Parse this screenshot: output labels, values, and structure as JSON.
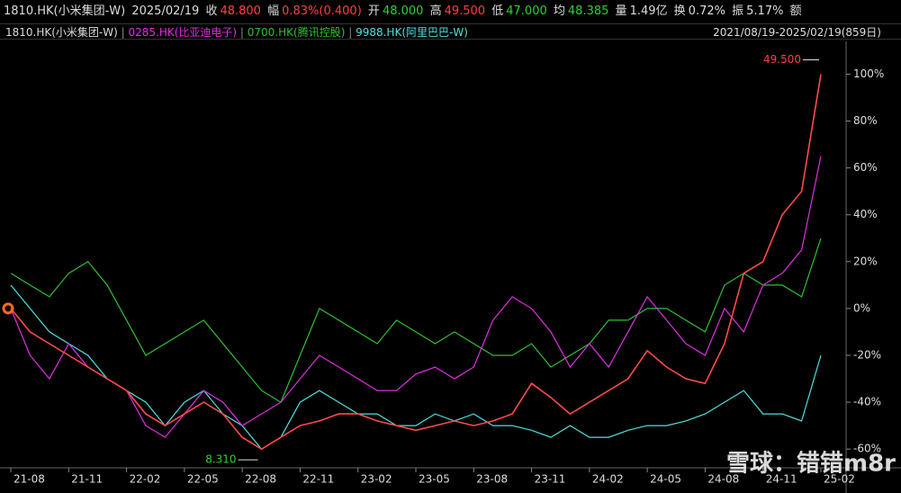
{
  "chart_data": {
    "type": "line",
    "info": [
      "1810.HK(小米集团-W)",
      "2025/02/19",
      "收",
      "48.800",
      "幅",
      "0.83%(0.400)",
      "开",
      "48.000",
      "高",
      "49.500",
      "低",
      "47.000",
      "均",
      "48.385",
      "量",
      "1.49亿",
      "换",
      "0.72%",
      "振",
      "5.17%",
      "额"
    ],
    "range": "2021/08/19-2025/02/19(859日)",
    "high_label": "49.500",
    "low_label": "8.310",
    "watermark": "雪球：错错m8r",
    "x": [
      "21-08",
      null,
      null,
      "21-11",
      null,
      null,
      "22-02",
      null,
      null,
      "22-05",
      null,
      null,
      "22-08",
      null,
      null,
      "22-11",
      null,
      null,
      "23-02",
      null,
      null,
      "23-05",
      null,
      null,
      "23-08",
      null,
      null,
      "23-11",
      null,
      null,
      "24-02",
      null,
      null,
      "24-05",
      null,
      null,
      "24-08",
      null,
      null,
      "24-11",
      null,
      null,
      "25-02"
    ],
    "series": [
      {
        "name": "1810.HK(小米集团-W)",
        "color": "#ff4a4a",
        "values": [
          0,
          -10,
          -15,
          -20,
          -25,
          -30,
          -35,
          -45,
          -50,
          -45,
          -40,
          -45,
          -55,
          -60,
          -55,
          -50,
          -48,
          -45,
          -45,
          -48,
          -50,
          -52,
          -50,
          -48,
          -50,
          -48,
          -45,
          -32,
          -38,
          -45,
          -40,
          -35,
          -30,
          -18,
          -25,
          -30,
          -32,
          -15,
          15,
          20,
          40,
          50,
          100
        ]
      },
      {
        "name": "0285.HK(比亚迪电子)",
        "color": "#e030e0",
        "values": [
          0,
          -20,
          -30,
          -15,
          -25,
          -30,
          -35,
          -50,
          -55,
          -45,
          -35,
          -40,
          -50,
          -45,
          -40,
          -30,
          -20,
          -25,
          -30,
          -35,
          -35,
          -28,
          -25,
          -30,
          -25,
          -5,
          5,
          0,
          -10,
          -25,
          -15,
          -25,
          -10,
          5,
          -5,
          -15,
          -20,
          0,
          -10,
          10,
          15,
          25,
          65
        ]
      },
      {
        "name": "0700.HK(腾讯控股)",
        "color": "#30c030",
        "values": [
          15,
          10,
          5,
          15,
          20,
          10,
          -5,
          -20,
          -15,
          -10,
          -5,
          -15,
          -25,
          -35,
          -40,
          -20,
          0,
          -5,
          -10,
          -15,
          -5,
          -10,
          -15,
          -10,
          -15,
          -20,
          -20,
          -15,
          -25,
          -20,
          -15,
          -5,
          -5,
          0,
          0,
          -5,
          -10,
          10,
          15,
          10,
          10,
          5,
          30
        ]
      },
      {
        "name": "9988.HK(阿里巴巴-W)",
        "color": "#50e0e0",
        "values": [
          10,
          0,
          -10,
          -15,
          -20,
          -30,
          -35,
          -40,
          -50,
          -40,
          -35,
          -45,
          -50,
          -60,
          -55,
          -40,
          -35,
          -40,
          -45,
          -45,
          -50,
          -50,
          -45,
          -48,
          -45,
          -50,
          -50,
          -52,
          -55,
          -50,
          -55,
          -55,
          -52,
          -50,
          -50,
          -48,
          -45,
          -40,
          -35,
          -45,
          -45,
          -48,
          -20
        ]
      }
    ],
    "ylim": [
      -68,
      114
    ],
    "yticks": [
      {
        "value": -60,
        "label": "-60%"
      },
      {
        "value": -40,
        "label": "-40%"
      },
      {
        "value": -20,
        "label": "-20%"
      },
      {
        "value": 0,
        "label": "0%"
      },
      {
        "value": 20,
        "label": "20%"
      },
      {
        "value": 40,
        "label": "40%"
      },
      {
        "value": 60,
        "label": "60%"
      },
      {
        "value": 80,
        "label": "80%"
      },
      {
        "value": 100,
        "label": "100%"
      }
    ]
  }
}
